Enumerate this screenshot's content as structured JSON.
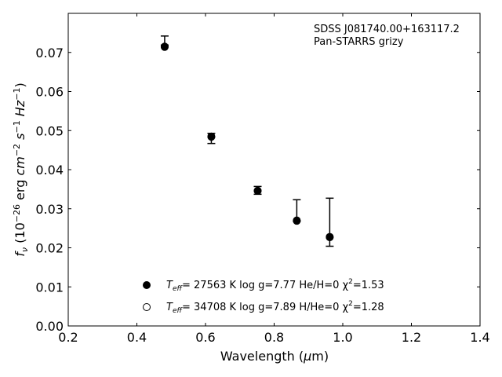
{
  "chart_data": {
    "type": "scatter",
    "annotation": [
      "SDSS J081740.00+163117.2",
      "Pan-STARRS grizy"
    ],
    "xlabel": "Wavelength (μm)",
    "ylabel": "f_ν (10^-26 erg cm^-2 s^-1 Hz^-1)",
    "xlim": [
      0.2,
      1.4
    ],
    "ylim": [
      0.0,
      0.08
    ],
    "x_ticks": [
      0.2,
      0.4,
      0.6,
      0.8,
      1.0,
      1.2,
      1.4
    ],
    "x_tick_labels": [
      "0.2",
      "0.4",
      "0.6",
      "0.8",
      "1.0",
      "1.2",
      "1.4"
    ],
    "y_ticks": [
      0.0,
      0.01,
      0.02,
      0.03,
      0.04,
      0.05,
      0.06,
      0.07
    ],
    "y_tick_labels": [
      "0.00",
      "0.01",
      "0.02",
      "0.03",
      "0.04",
      "0.05",
      "0.06",
      "0.07"
    ],
    "grid": false,
    "legend_placement": "lower-center",
    "observed": {
      "x": [
        0.481,
        0.617,
        0.752,
        0.866,
        0.962
      ],
      "y": [
        0.0718,
        0.048,
        0.0348,
        0.0273,
        0.0224
      ],
      "yerr_low": [
        0.0719,
        0.0467,
        0.0337,
        0.0268,
        0.0204
      ],
      "yerr_high": [
        0.0742,
        0.0493,
        0.0357,
        0.0323,
        0.0327
      ]
    },
    "series": [
      {
        "label_teff": "T",
        "label_sub": "eff",
        "label_rest": "= 27563 K  log g=7.77  He/H=0  χ",
        "label_sup": "2",
        "label_end": "=1.53",
        "marker": "filled",
        "x": [
          0.481,
          0.617,
          0.752,
          0.866,
          0.962
        ],
        "y": [
          0.0714,
          0.0485,
          0.0346,
          0.0269,
          0.0227
        ]
      },
      {
        "label_teff": "T",
        "label_sub": "eff",
        "label_rest": "= 34708 K  log g=7.89  H/He=0  χ",
        "label_sup": "2",
        "label_end": "=1.28",
        "marker": "open",
        "x": [
          0.481,
          0.617,
          0.752,
          0.866,
          0.962
        ],
        "y": [
          0.0715,
          0.0484,
          0.0346,
          0.027,
          0.0228
        ]
      }
    ]
  }
}
